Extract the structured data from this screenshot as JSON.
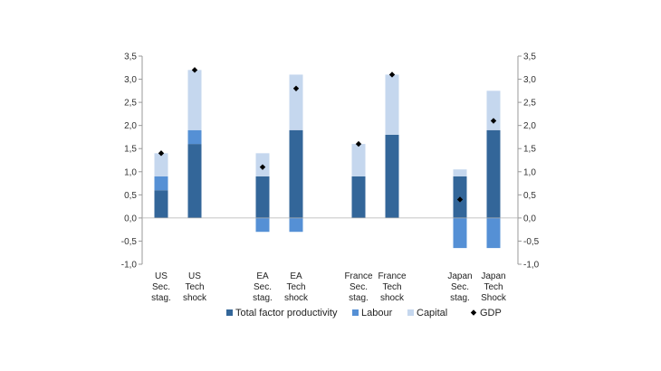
{
  "chart_data": {
    "type": "bar",
    "stacked": true,
    "title": "",
    "xlabel": "",
    "ylabel": "",
    "ylim": [
      -1.0,
      3.5
    ],
    "ytick_step": 0.5,
    "ytick_labels": [
      "-1,0",
      "-0,5",
      "0,0",
      "0,5",
      "1,0",
      "1,5",
      "2,0",
      "2,5",
      "3,0",
      "3,5"
    ],
    "grid": false,
    "legend_position": "bottom",
    "categories": [
      {
        "label": [
          "US",
          "Sec.",
          "stag."
        ],
        "group": 0
      },
      {
        "label": [
          "US",
          "Tech",
          "shock"
        ],
        "group": 0
      },
      {
        "label": [
          "EA",
          "Sec.",
          "stag."
        ],
        "group": 1
      },
      {
        "label": [
          "EA",
          "Tech",
          "shock"
        ],
        "group": 1
      },
      {
        "label": [
          "France",
          "Sec.",
          "stag."
        ],
        "group": 2
      },
      {
        "label": [
          "France",
          "Tech",
          "shock"
        ],
        "group": 2
      },
      {
        "label": [
          "Japan",
          "Sec.",
          "stag."
        ],
        "group": 3
      },
      {
        "label": [
          "Japan",
          "Tech",
          "Shock"
        ],
        "group": 3
      }
    ],
    "series": [
      {
        "name": "Total factor productivity",
        "color": "#336699",
        "values": [
          0.6,
          1.6,
          0.9,
          1.9,
          0.9,
          1.8,
          0.9,
          1.9
        ]
      },
      {
        "name": "Labour",
        "color": "#5590d5",
        "values": [
          0.3,
          0.3,
          -0.3,
          -0.3,
          0.0,
          0.0,
          -0.65,
          -0.65
        ]
      },
      {
        "name": "Capital",
        "color": "#c5d7ee",
        "values": [
          0.5,
          1.3,
          0.5,
          1.2,
          0.7,
          1.3,
          0.15,
          0.85
        ]
      }
    ],
    "markers": {
      "name": "GDP",
      "color": "#000000",
      "values": [
        1.4,
        3.2,
        1.1,
        2.8,
        1.6,
        3.1,
        0.4,
        2.1
      ]
    }
  }
}
